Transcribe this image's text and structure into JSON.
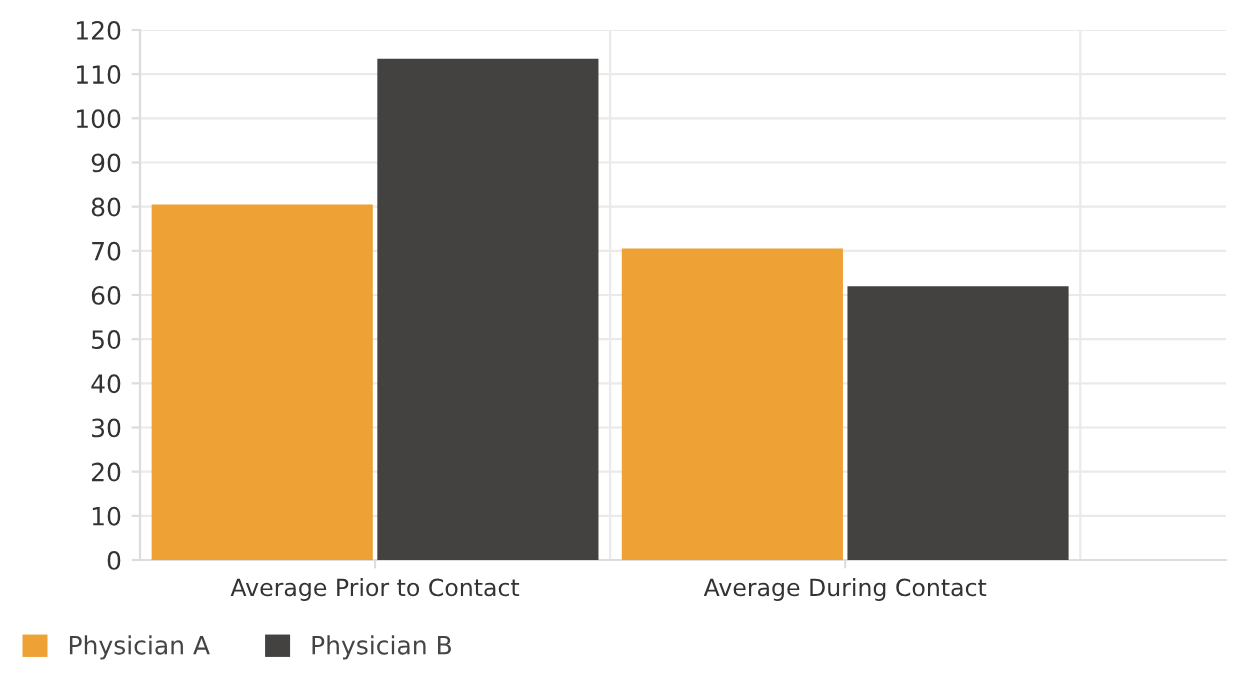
{
  "chart_data": {
    "type": "bar",
    "categories": [
      "Average Prior to Contact",
      "Average During Contact"
    ],
    "series": [
      {
        "name": "Physician A",
        "color": "#eea236",
        "values": [
          80.5,
          70.5
        ]
      },
      {
        "name": "Physician B",
        "color": "#444240",
        "values": [
          113.5,
          62
        ]
      }
    ],
    "ylim": [
      0,
      120
    ],
    "yticks": [
      0,
      10,
      20,
      30,
      40,
      50,
      60,
      70,
      80,
      90,
      100,
      110,
      120
    ],
    "grid": true,
    "legend": "bottom left"
  }
}
